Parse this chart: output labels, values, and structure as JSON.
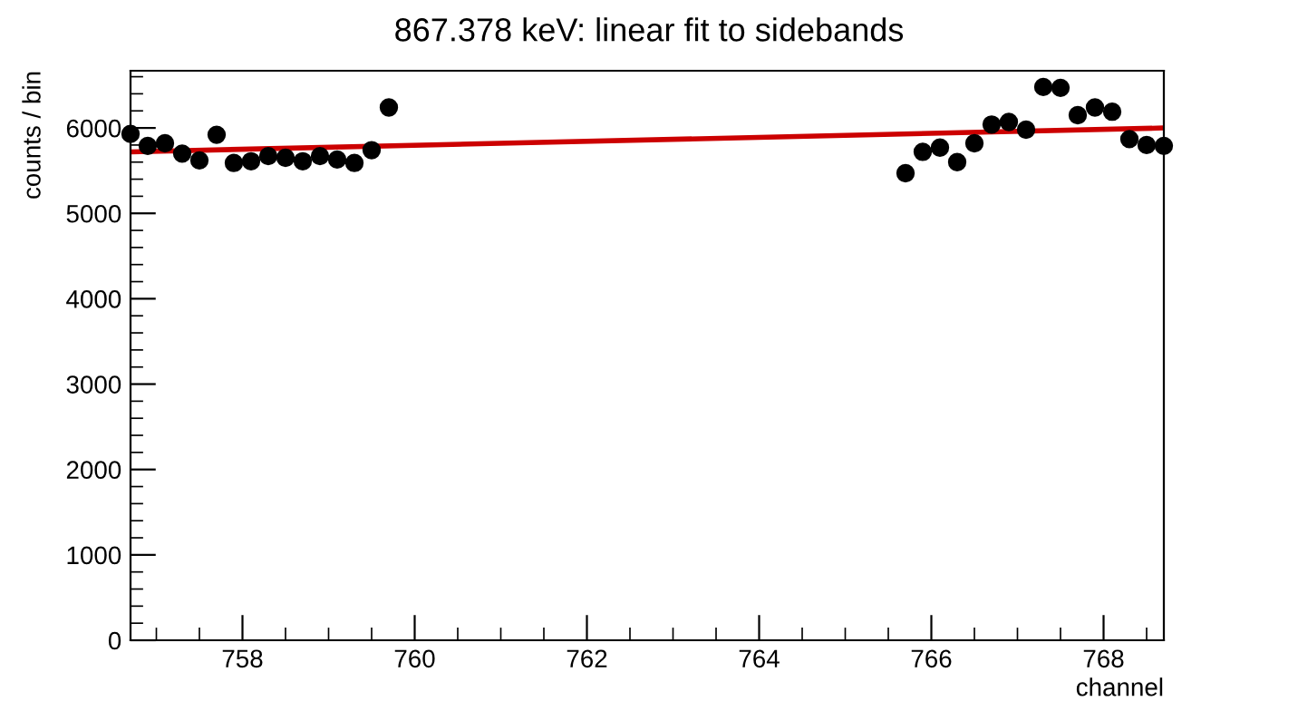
{
  "chart_data": {
    "type": "scatter",
    "title": "867.378 keV: linear fit to sidebands",
    "xlabel": "channel",
    "ylabel": "counts / bin",
    "xlim": [
      756.7,
      768.7
    ],
    "xticks": [
      758,
      760,
      762,
      764,
      766,
      768
    ],
    "ylim": [
      0,
      6670
    ],
    "yticks": [
      0,
      1000,
      2000,
      3000,
      4000,
      5000,
      6000
    ],
    "grid": false,
    "series": [
      {
        "color": "#000000",
        "marker": "circle",
        "x": [
          756.7,
          756.9,
          757.1,
          757.3,
          757.5,
          757.7,
          757.9,
          758.1,
          758.3,
          758.5,
          758.7,
          758.9,
          759.1,
          759.3,
          759.5,
          759.7,
          765.7,
          765.9,
          766.1,
          766.3,
          766.5,
          766.7,
          766.9,
          767.1,
          767.3,
          767.5,
          767.7,
          767.9,
          768.1,
          768.3,
          768.5,
          768.7
        ],
        "values": [
          5930,
          5790,
          5820,
          5700,
          5620,
          5920,
          5590,
          5610,
          5670,
          5650,
          5610,
          5670,
          5630,
          5590,
          5740,
          6240,
          5470,
          5720,
          5770,
          5600,
          5820,
          6040,
          6070,
          5980,
          6480,
          6470,
          6150,
          6240,
          6190,
          5870,
          5800,
          5790
        ]
      },
      {
        "type": "line",
        "color": "#cc0000",
        "marker": "none",
        "x": [
          756.7,
          768.7
        ],
        "values": [
          5720,
          6000
        ]
      }
    ]
  }
}
